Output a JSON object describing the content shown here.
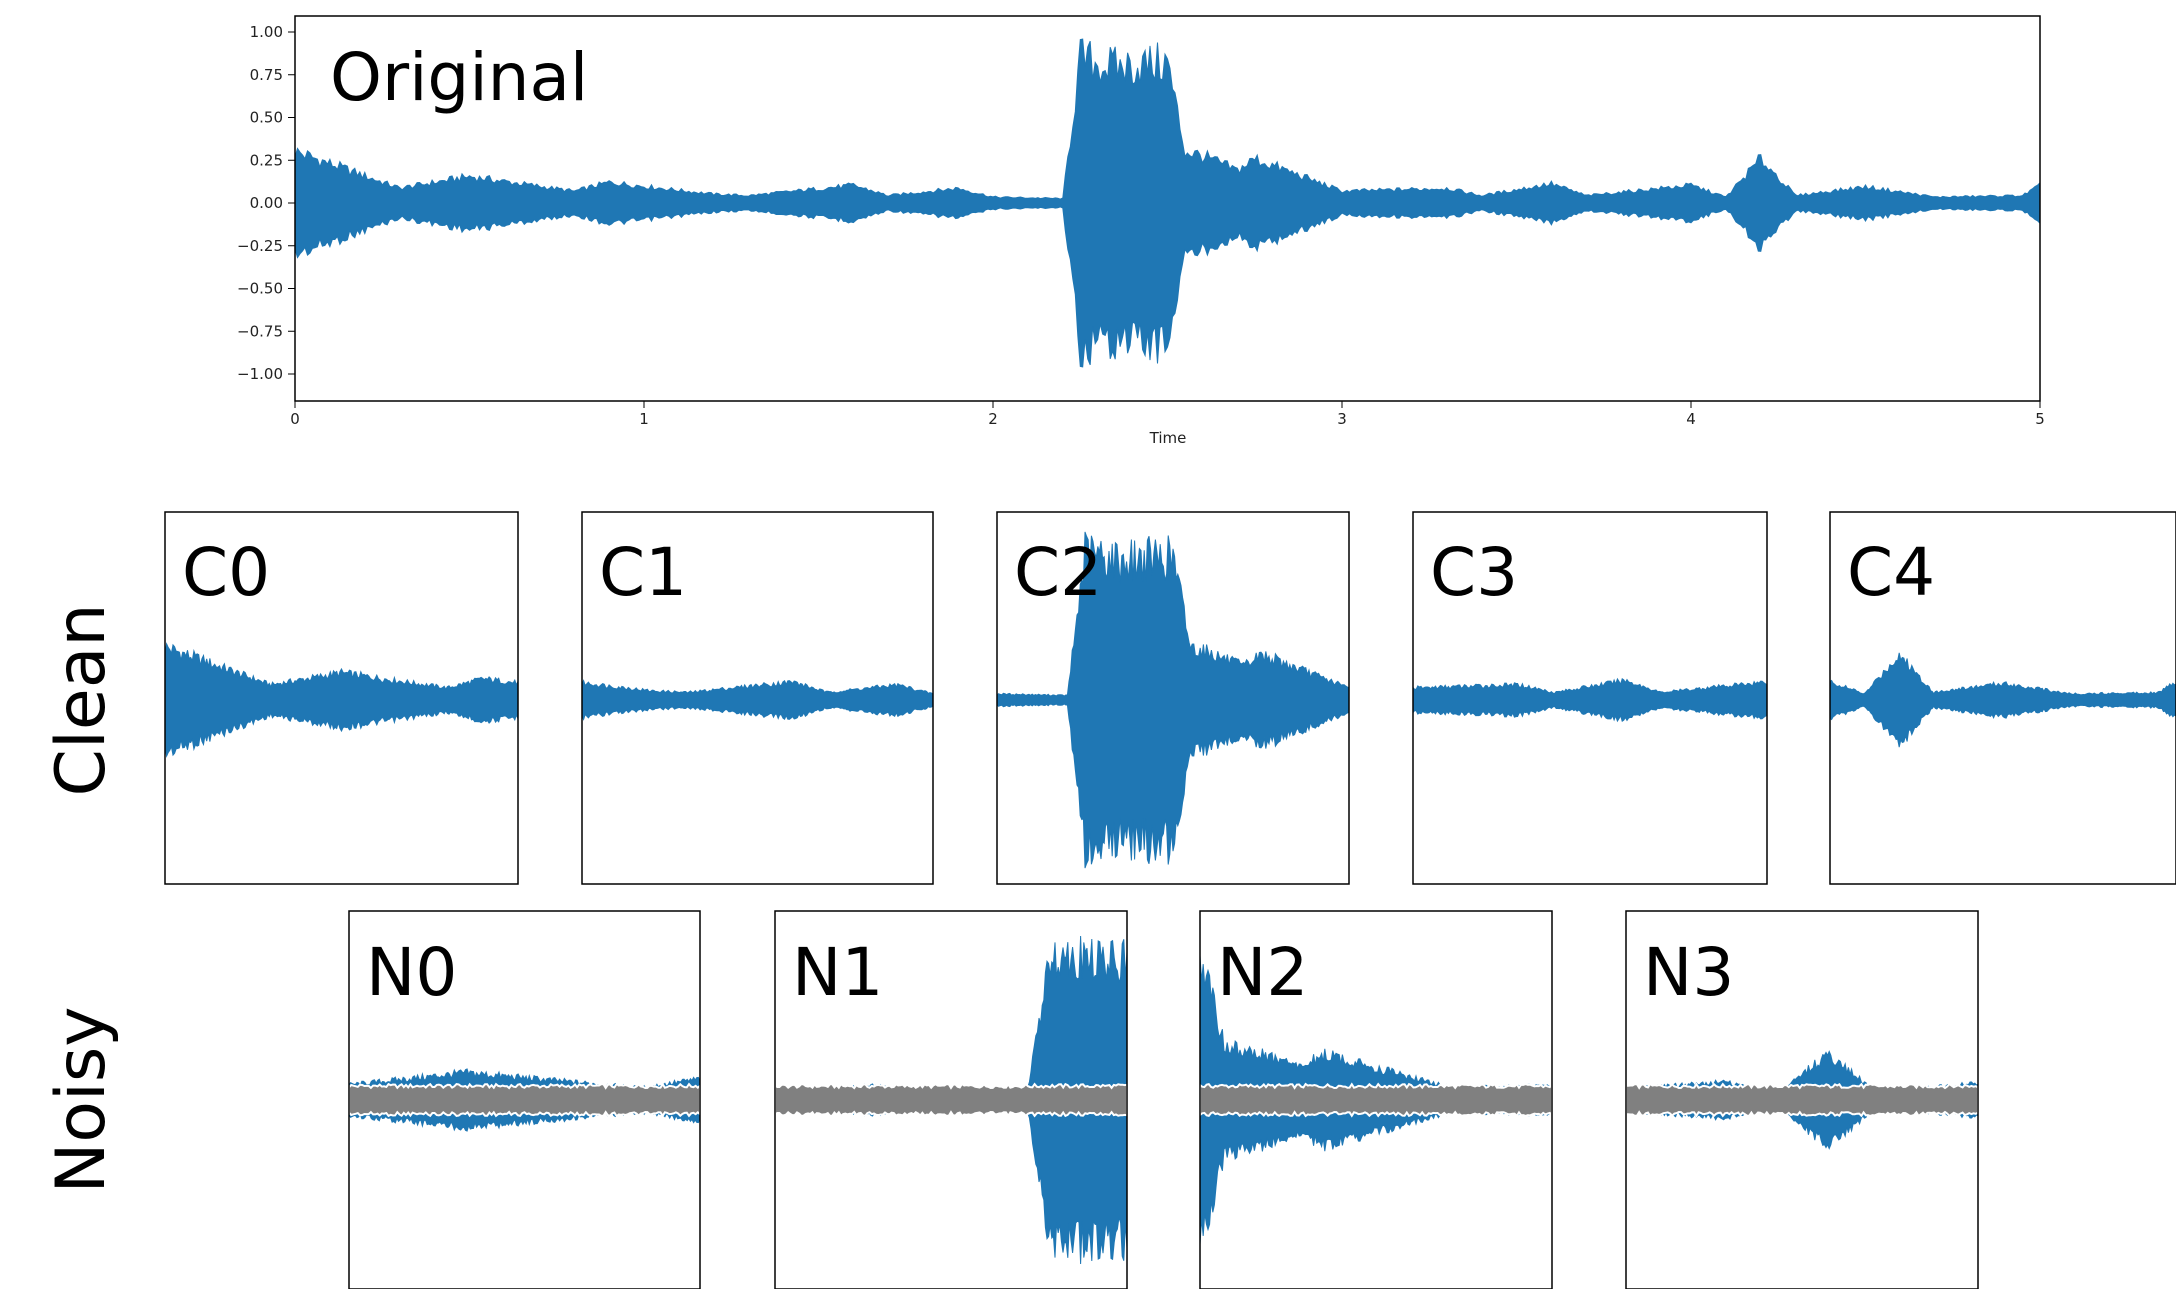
{
  "main_plot": {
    "label": "Original",
    "xlabel": "Time",
    "xticks": [
      "0",
      "1",
      "2",
      "3",
      "4",
      "5"
    ],
    "yticks": [
      "1.00",
      "0.75",
      "0.50",
      "0.25",
      "0.00",
      "−0.25",
      "−0.50",
      "−0.75",
      "−1.00"
    ]
  },
  "row_labels": {
    "clean": "Clean",
    "noisy": "Noisy"
  },
  "clean_segments": [
    "C0",
    "C1",
    "C2",
    "C3",
    "C4"
  ],
  "noisy_segments": [
    "N0",
    "N1",
    "N2",
    "N3"
  ],
  "colors": {
    "waveform": "#1f77b4",
    "noise": "#808080",
    "noise_edge": "#ffffff",
    "frame": "#000000"
  },
  "chart_data": {
    "type": "area",
    "series": [
      {
        "x": [
          0,
          0.3,
          0.5,
          0.8,
          0.9,
          1.2,
          1.3,
          1.6,
          1.7,
          1.9,
          2.0,
          2.2,
          2.25,
          2.35,
          2.5,
          2.55,
          2.6,
          2.7,
          2.75,
          3.0,
          3.3,
          3.4,
          3.6,
          3.7,
          4.0,
          4.1,
          4.2,
          4.3,
          4.5,
          4.7,
          4.95,
          5.0
        ],
        "y": [
          0.35,
          0.1,
          0.18,
          0.08,
          0.14,
          0.06,
          0.05,
          0.12,
          0.05,
          0.1,
          0.04,
          0.03,
          0.98,
          0.92,
          0.95,
          0.35,
          0.32,
          0.22,
          0.3,
          0.08,
          0.1,
          0.05,
          0.13,
          0.05,
          0.12,
          0.04,
          0.3,
          0.05,
          0.11,
          0.04,
          0.05,
          0.12
        ]
      }
    ],
    "xlabel": "Time",
    "xlim": [
      0,
      5
    ],
    "ylim": [
      -1.0,
      1.0
    ]
  }
}
